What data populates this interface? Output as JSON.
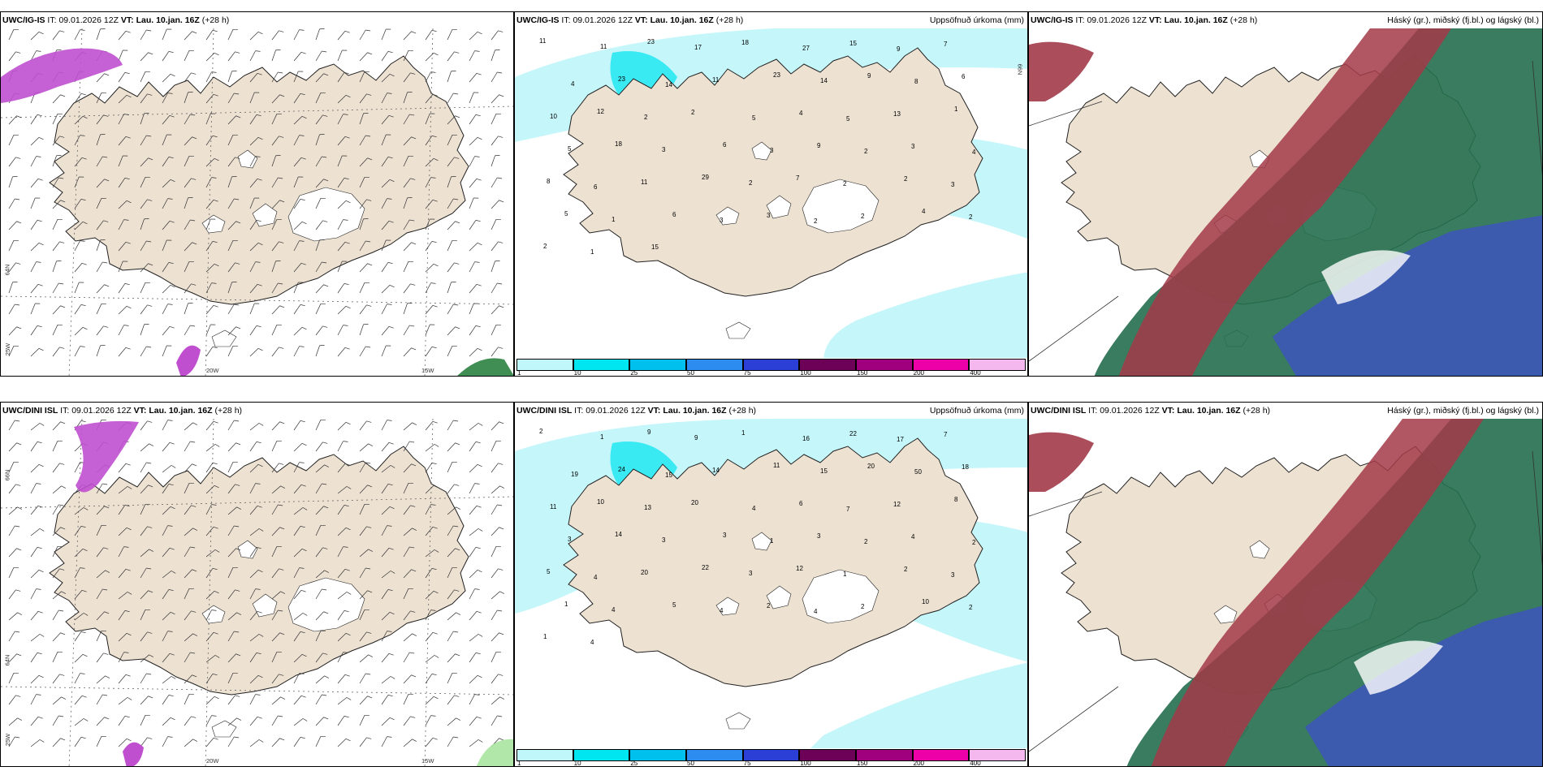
{
  "panels": [
    {
      "id": "p1",
      "model": "UWC/IG-IS",
      "it": "09.01.2026 12Z",
      "vt": "Lau. 10.jan. 16Z",
      "lead": "(+28 h)",
      "right": ""
    },
    {
      "id": "p2",
      "model": "UWC/IG-IS",
      "it": "09.01.2026 12Z",
      "vt": "Lau. 10.jan. 16Z",
      "lead": "(+28 h)",
      "right": "Uppsöfnuð úrkoma (mm)"
    },
    {
      "id": "p3",
      "model": "UWC/IG-IS",
      "it": "09.01.2026 12Z",
      "vt": "Lau. 10.jan. 16Z",
      "lead": "(+28 h)",
      "right": "Háský (gr.), miðský (fj.bl.) og lágský (bl.)"
    },
    {
      "id": "p4",
      "model": "UWC/DINI ISL",
      "it": "09.01.2026 12Z",
      "vt": "Lau. 10.jan. 16Z",
      "lead": "(+28 h)",
      "right": ""
    },
    {
      "id": "p5",
      "model": "UWC/DINI ISL",
      "it": "09.01.2026 12Z",
      "vt": "Lau. 10.jan. 16Z",
      "lead": "(+28 h)",
      "right": "Uppsöfnuð úrkoma (mm)"
    },
    {
      "id": "p6",
      "model": "UWC/DINI ISL",
      "it": "09.01.2026 12Z",
      "vt": "Lau. 10.jan. 16Z",
      "lead": "(+28 h)",
      "right": "Háský (gr.), miðský (fj.bl.) og lágský (bl.)"
    }
  ],
  "labels": {
    "it": "IT:",
    "vt": "VT:"
  },
  "axis": {
    "lon20": "20W",
    "lon15": "15W",
    "lon25": "25W",
    "lat66": "66N",
    "lat64": "64N"
  },
  "precip_scale": {
    "ticks": [
      "1",
      "10",
      "25",
      "50",
      "75",
      "100",
      "150",
      "200",
      "400"
    ],
    "colors": [
      "#bff7fb",
      "#00e6f0",
      "#00c0ee",
      "#2d8cf0",
      "#2b3fd6",
      "#6d0057",
      "#a0007e",
      "#ee00a8",
      "#f4b8ee"
    ]
  },
  "precip_values_top": [
    "11",
    "11",
    "23",
    "17",
    "18",
    "27",
    "15",
    "9",
    "7",
    "4",
    "23",
    "14",
    "11",
    "23",
    "14",
    "9",
    "8",
    "6",
    "10",
    "12",
    "2",
    "2",
    "5",
    "4",
    "5",
    "13",
    "1",
    "5",
    "18",
    "3",
    "6",
    "3",
    "9",
    "2",
    "3",
    "4",
    "8",
    "6",
    "11",
    "29",
    "2",
    "7",
    "2",
    "2",
    "3",
    "5",
    "1",
    "6",
    "3",
    "3",
    "2",
    "2",
    "4",
    "2",
    "2",
    "1",
    "15"
  ],
  "precip_values_bottom": [
    "2",
    "1",
    "9",
    "9",
    "1",
    "16",
    "22",
    "17",
    "7",
    "19",
    "24",
    "15",
    "14",
    "11",
    "15",
    "20",
    "50",
    "18",
    "11",
    "10",
    "13",
    "20",
    "4",
    "6",
    "7",
    "12",
    "8",
    "3",
    "14",
    "3",
    "3",
    "1",
    "3",
    "2",
    "4",
    "2",
    "5",
    "4",
    "20",
    "22",
    "3",
    "12",
    "1",
    "2",
    "3",
    "1",
    "4",
    "5",
    "4",
    "2",
    "4",
    "2",
    "10",
    "2",
    "1",
    "4"
  ],
  "colors": {
    "land": "#ede1d2",
    "ocean": "#ffffff",
    "glacier": "#ffffff",
    "precip_light": "#c4f6fa",
    "precip_mid": "#00e6f0",
    "cloud_high": "#a23a48",
    "cloud_mid": "#236e4e",
    "cloud_low": "#3d4fc8"
  }
}
